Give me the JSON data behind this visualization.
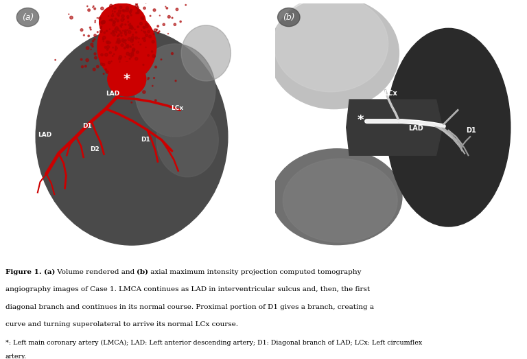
{
  "figure_width": 7.68,
  "figure_height": 5.23,
  "dpi": 100,
  "bg_color": "#ffffff",
  "panel_a_label": "(a)",
  "panel_b_label": "(b)",
  "caption_line1_seg1": "Figure 1.",
  "caption_line1_seg2": " ",
  "caption_line1_seg3": "(a)",
  "caption_line1_seg4": " Volume rendered and ",
  "caption_line1_seg5": "(b)",
  "caption_line1_seg6": " axial maximum intensity projection computed tomography",
  "caption_line2": "angiography images of Case 1. LMCA continues as LAD in interventricular sulcus and, then, the first",
  "caption_line3": "diagonal branch and continues in its normal course. Proximal portion of D1 gives a branch, creating a",
  "caption_line4": "curve and turning superolateral to arrive its normal LCx course.",
  "caption_line5": "*: Left main coronary artery (LMCA); LAD: Left anterior descending artery; D1: Diagonal branch of LAD; LCx: Left circumflex",
  "caption_line6": "artery.",
  "text_color": "#000000",
  "label_color_white": "#ffffff",
  "panel_a_bg": "#2a2a2a",
  "panel_b_bg": "#3a3a3a",
  "red_color": "#cc0000",
  "red_dark": "#aa0000",
  "heart_gray": "#555555",
  "font_size_main": 7.5,
  "font_size_note": 6.8,
  "font_size_label": 10
}
